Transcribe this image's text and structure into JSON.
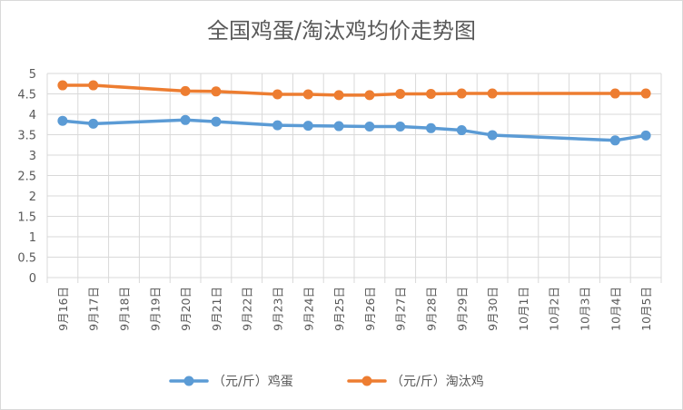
{
  "chart_data": {
    "type": "line",
    "title": "全国鸡蛋/淘汰鸡均价走势图",
    "categories": [
      "9月16日",
      "9月17日",
      "9月18日",
      "9月19日",
      "9月20日",
      "9月21日",
      "9月22日",
      "9月23日",
      "9月24日",
      "9月25日",
      "9月26日",
      "9月27日",
      "9月28日",
      "9月29日",
      "9月30日",
      "10月1日",
      "10月2日",
      "10月3日",
      "10月4日",
      "10月5日"
    ],
    "yticks": [
      "0",
      "0.5",
      "1",
      "1.5",
      "2",
      "2.5",
      "3",
      "3.5",
      "4",
      "4.5",
      "5"
    ],
    "ylim": [
      0,
      5
    ],
    "grid": true,
    "legend_position": "bottom",
    "series": [
      {
        "name": "（元/斤）鸡蛋",
        "color": "#5b9bd5",
        "values": [
          3.84,
          3.77,
          null,
          null,
          3.86,
          3.82,
          null,
          3.73,
          3.72,
          3.71,
          3.7,
          3.7,
          3.66,
          3.61,
          3.49,
          null,
          null,
          null,
          3.36,
          3.48
        ]
      },
      {
        "name": "（元/斤）淘汰鸡",
        "color": "#ed7d31",
        "values": [
          4.71,
          4.71,
          null,
          null,
          4.57,
          4.56,
          null,
          4.49,
          4.49,
          4.47,
          4.47,
          4.5,
          4.5,
          4.51,
          4.51,
          null,
          null,
          null,
          4.51,
          4.51
        ]
      }
    ]
  }
}
